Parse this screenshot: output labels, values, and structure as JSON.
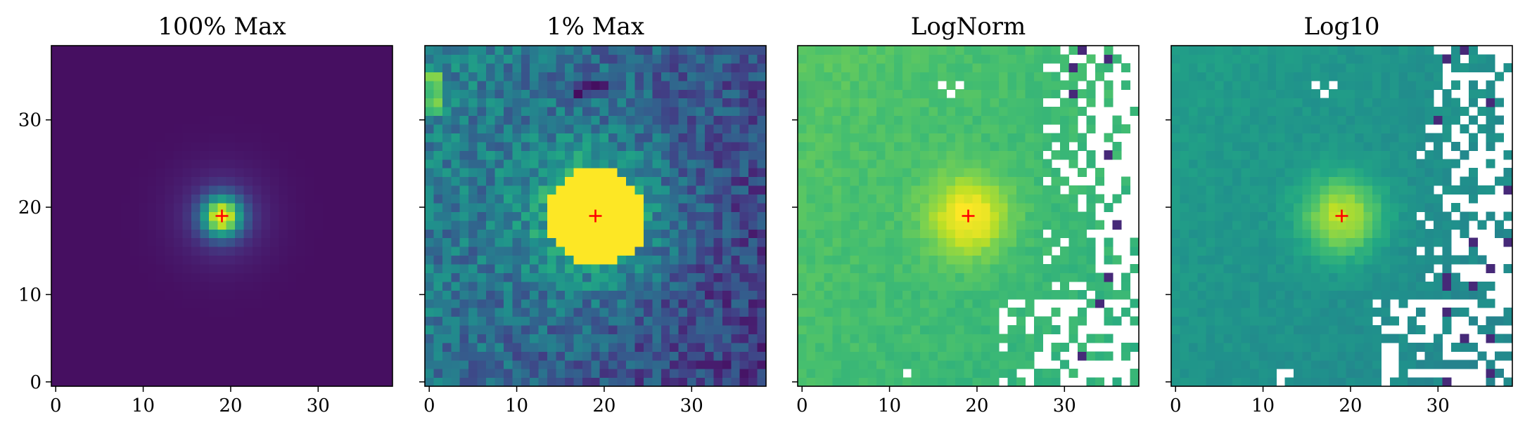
{
  "chart_data": [
    {
      "type": "heatmap",
      "title": "100% Max",
      "colormap": "viridis",
      "normalization": "linear, vmax = image maximum",
      "xlim": [
        -0.5,
        38.5
      ],
      "ylim": [
        -0.5,
        38.5
      ],
      "xticks": [
        "0",
        "10",
        "20",
        "30"
      ],
      "yticks": [
        "0",
        "10",
        "20",
        "30"
      ],
      "marker": {
        "shape": "+",
        "color": "#ff0000",
        "x": 19,
        "y": 19
      },
      "blank_pixels": "none",
      "grid": false
    },
    {
      "type": "heatmap",
      "title": "1% Max",
      "colormap": "viridis",
      "normalization": "linear, vmax = 1% of image maximum (saturated core)",
      "xlim": [
        -0.5,
        38.5
      ],
      "ylim": [
        -0.5,
        38.5
      ],
      "xticks": [
        "0",
        "10",
        "20",
        "30"
      ],
      "yticks": [],
      "marker": {
        "shape": "+",
        "color": "#ff0000",
        "x": 19,
        "y": 19
      },
      "blank_pixels": "none",
      "grid": false
    },
    {
      "type": "heatmap",
      "title": "LogNorm",
      "colormap": "viridis",
      "normalization": "logarithmic (non-positive pixels blank)",
      "xlim": [
        -0.5,
        38.5
      ],
      "ylim": [
        -0.5,
        38.5
      ],
      "xticks": [
        "0",
        "10",
        "20",
        "30"
      ],
      "yticks": [],
      "marker": {
        "shape": "+",
        "color": "#ff0000",
        "x": 19,
        "y": 19
      },
      "blank_pixels": "white, mostly in the right and lower-right region",
      "grid": false
    },
    {
      "type": "heatmap",
      "title": "Log10",
      "colormap": "viridis",
      "normalization": "log10 of pixel values (non-positive pixels blank)",
      "xlim": [
        -0.5,
        38.5
      ],
      "ylim": [
        -0.5,
        38.5
      ],
      "xticks": [
        "0",
        "10",
        "20",
        "30"
      ],
      "yticks": [],
      "marker": {
        "shape": "+",
        "color": "#ff0000",
        "x": 19,
        "y": 19
      },
      "blank_pixels": "white, mostly in the right and lower-right region",
      "grid": false
    }
  ]
}
